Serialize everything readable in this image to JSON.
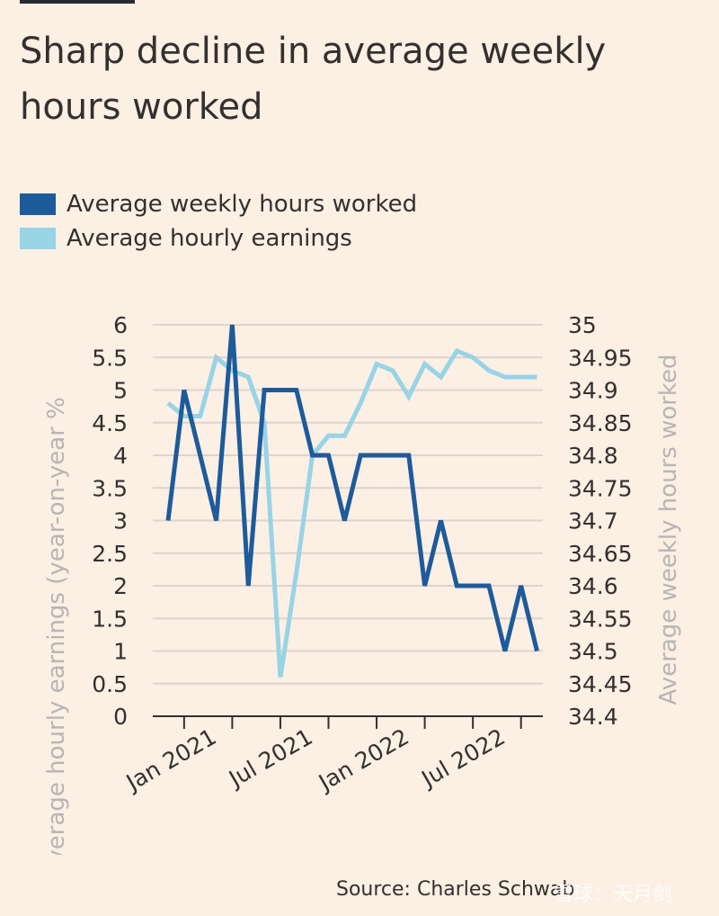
{
  "title": "Sharp decline in average weekly hours worked",
  "legend": [
    {
      "label": "Average weekly hours worked",
      "color": "#1d5b9a"
    },
    {
      "label": "Average hourly earnings",
      "color": "#98d3e6"
    }
  ],
  "source": "Source: Charles Schwab",
  "watermark": "雪球：天月剑",
  "chart_data": {
    "type": "line",
    "title": "Sharp decline in average weekly hours worked",
    "x_ticks": [
      "Jan 2021",
      "Jul 2021",
      "Jan 2022",
      "Jul 2022"
    ],
    "x_period": {
      "start": "2020-10",
      "end": "2022-10",
      "frequency": "monthly"
    },
    "left_axis": {
      "label": "Average hourly earnings (year-on-year %",
      "ylim": [
        0,
        6
      ],
      "ticks": [
        "0",
        "0.5",
        "1",
        "1.5",
        "2",
        "2.5",
        "3",
        "3.5",
        "4",
        "4.5",
        "5",
        "5.5",
        "6"
      ]
    },
    "right_axis": {
      "label": "Average weekly hours worked",
      "ylim": [
        34.4,
        35
      ],
      "ticks": [
        "34.4",
        "34.45",
        "34.5",
        "34.55",
        "34.6",
        "34.65",
        "34.7",
        "34.75",
        "34.8",
        "34.85",
        "34.9",
        "34.95",
        "35"
      ]
    },
    "series": [
      {
        "name": "Average weekly hours worked",
        "axis": "right",
        "color": "#1d5b9a",
        "values": [
          34.7,
          34.9,
          34.8,
          34.7,
          35.0,
          34.6,
          34.9,
          34.9,
          34.9,
          34.8,
          34.8,
          34.7,
          34.8,
          34.8,
          34.8,
          34.8,
          34.6,
          34.7,
          34.6,
          34.6,
          34.6,
          34.5,
          34.6,
          34.5
        ]
      },
      {
        "name": "Average hourly earnings",
        "axis": "left",
        "color": "#98d3e6",
        "values": [
          4.8,
          4.6,
          4.6,
          5.5,
          5.3,
          5.2,
          4.5,
          0.6,
          2.2,
          4.0,
          4.3,
          4.3,
          4.8,
          5.4,
          5.3,
          4.9,
          5.4,
          5.2,
          5.6,
          5.5,
          5.3,
          5.2,
          5.2,
          5.2
        ]
      }
    ]
  }
}
